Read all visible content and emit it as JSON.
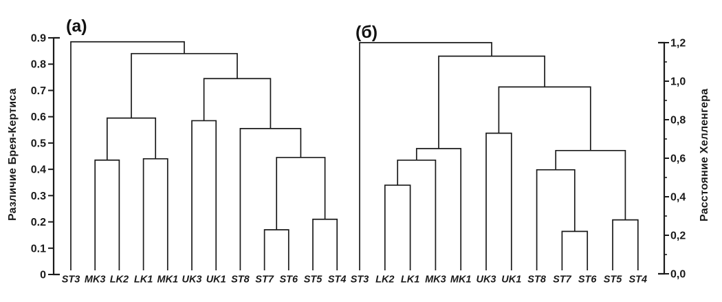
{
  "figure": {
    "background_color": "#ffffff",
    "line_color": "#1a1a1a"
  },
  "chart_data": [
    {
      "type": "dendrogram",
      "panel_label": "(а)",
      "axis_side": "left",
      "axis_title": "Различие Брея-Кертиса",
      "ylim": [
        0,
        0.9
      ],
      "grid": false,
      "axis_ticks": [
        {
          "value": 0.9,
          "label": "0.9"
        },
        {
          "value": 0.8,
          "label": "0.8"
        },
        {
          "value": 0.7,
          "label": "0.7"
        },
        {
          "value": 0.6,
          "label": "0.6"
        },
        {
          "value": 0.5,
          "label": "0.5"
        },
        {
          "value": 0.4,
          "label": "0.4"
        },
        {
          "value": 0.3,
          "label": "0.3"
        },
        {
          "value": 0.2,
          "label": "0.2"
        },
        {
          "value": 0.1,
          "label": "0.1"
        },
        {
          "value": 0,
          "label": "0"
        }
      ],
      "axis_minor_ticks": [],
      "leaves": [
        "ST3",
        "MK3",
        "LK2",
        "LK1",
        "MK1",
        "UK3",
        "UK1",
        "ST8",
        "ST7",
        "ST6",
        "ST5",
        "ST4"
      ],
      "merges": [
        {
          "id": "A1",
          "children": [
            "MK3",
            "LK2"
          ],
          "height": 0.435
        },
        {
          "id": "A2",
          "children": [
            "LK1",
            "MK1"
          ],
          "height": 0.44
        },
        {
          "id": "A3",
          "children": [
            "A1",
            "A2"
          ],
          "height": 0.595
        },
        {
          "id": "A4",
          "children": [
            "UK3",
            "UK1"
          ],
          "height": 0.585
        },
        {
          "id": "A5",
          "children": [
            "ST7",
            "ST6"
          ],
          "height": 0.17
        },
        {
          "id": "A6",
          "children": [
            "ST5",
            "ST4"
          ],
          "height": 0.21
        },
        {
          "id": "A7",
          "children": [
            "A5",
            "A6"
          ],
          "height": 0.445
        },
        {
          "id": "A8",
          "children": [
            "ST8",
            "A7"
          ],
          "height": 0.555
        },
        {
          "id": "A9",
          "children": [
            "A4",
            "A8"
          ],
          "height": 0.745
        },
        {
          "id": "A10",
          "children": [
            "A3",
            "A9"
          ],
          "height": 0.84
        },
        {
          "id": "A11",
          "children": [
            "ST3",
            "A10"
          ],
          "height": 0.885
        }
      ]
    },
    {
      "type": "dendrogram",
      "panel_label": "(б)",
      "axis_side": "right",
      "axis_title": "Расстояние Хелленгера",
      "ylim": [
        0,
        1.2
      ],
      "grid": false,
      "axis_ticks": [
        {
          "value": 1.2,
          "label": "1,2"
        },
        {
          "value": 1.0,
          "label": "1,0"
        },
        {
          "value": 0.8,
          "label": "0,8"
        },
        {
          "value": 0.6,
          "label": "0,6"
        },
        {
          "value": 0.4,
          "label": "0,4"
        },
        {
          "value": 0.2,
          "label": "0,2"
        },
        {
          "value": 0,
          "label": "0,0"
        }
      ],
      "axis_minor_ticks": [
        0.1,
        0.3,
        0.5,
        0.7,
        0.9,
        1.1
      ],
      "leaves": [
        "ST3",
        "LK2",
        "LK1",
        "MK3",
        "MK1",
        "UK3",
        "UK1",
        "ST8",
        "ST7",
        "ST6",
        "ST5",
        "ST4"
      ],
      "merges": [
        {
          "id": "B1",
          "children": [
            "LK2",
            "LK1"
          ],
          "height": 0.46
        },
        {
          "id": "B2",
          "children": [
            "B1",
            "MK3"
          ],
          "height": 0.59
        },
        {
          "id": "B3",
          "children": [
            "B2",
            "MK1"
          ],
          "height": 0.65
        },
        {
          "id": "B4",
          "children": [
            "UK3",
            "UK1"
          ],
          "height": 0.73
        },
        {
          "id": "B5",
          "children": [
            "ST7",
            "ST6"
          ],
          "height": 0.22
        },
        {
          "id": "B6",
          "children": [
            "ST5",
            "ST4"
          ],
          "height": 0.28
        },
        {
          "id": "B7",
          "children": [
            "ST8",
            "B5"
          ],
          "height": 0.54
        },
        {
          "id": "B8",
          "children": [
            "B7",
            "B6"
          ],
          "height": 0.64
        },
        {
          "id": "B9",
          "children": [
            "B4",
            "B8"
          ],
          "height": 0.97
        },
        {
          "id": "B10",
          "children": [
            "B3",
            "B9"
          ],
          "height": 1.13
        },
        {
          "id": "B11",
          "children": [
            "ST3",
            "B10"
          ],
          "height": 1.2
        }
      ]
    }
  ]
}
